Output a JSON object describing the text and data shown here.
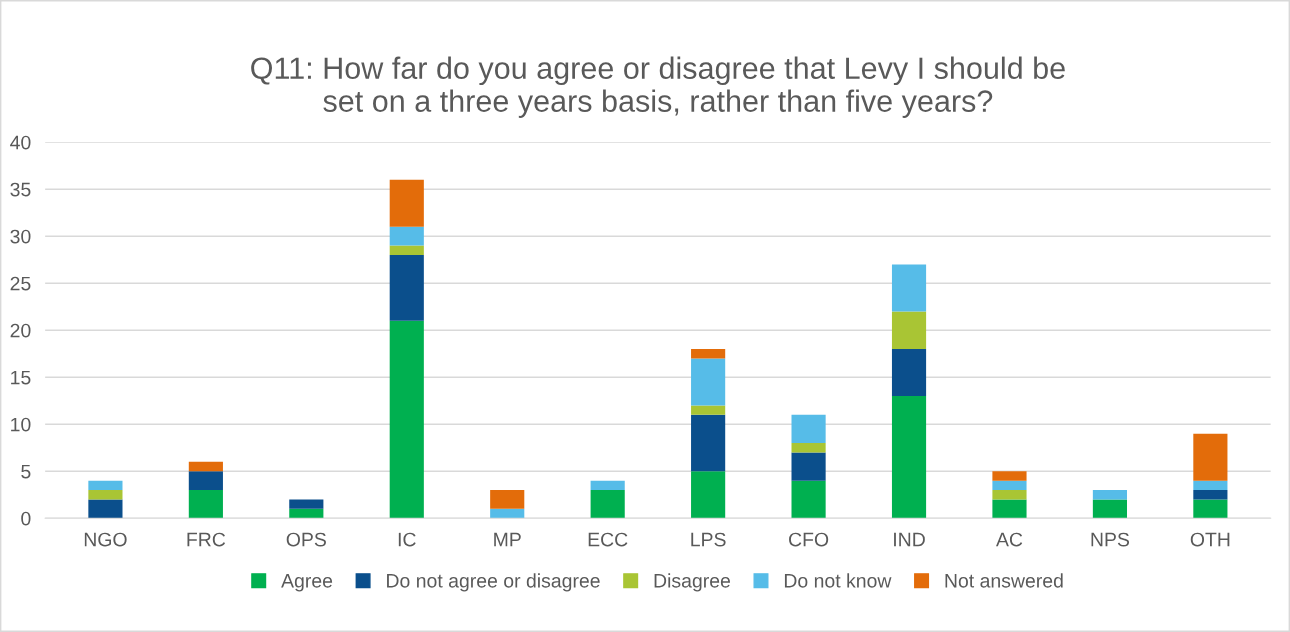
{
  "chart_data": {
    "type": "bar",
    "stacked": true,
    "title": "Q11: How far do you agree or disagree that Levy I should be\nset on a three years basis, rather than five years?",
    "categories": [
      "NGO",
      "FRC",
      "OPS",
      "IC",
      "MP",
      "ECC",
      "LPS",
      "CFO",
      "IND",
      "AC",
      "NPS",
      "OTH"
    ],
    "series": [
      {
        "name": "Agree",
        "color": "#00b050",
        "values": [
          0,
          3,
          1,
          21,
          0,
          3,
          5,
          4,
          13,
          2,
          2,
          2
        ]
      },
      {
        "name": "Do not agree or disagree",
        "color": "#0b4f8c",
        "values": [
          2,
          2,
          1,
          7,
          0,
          0,
          6,
          3,
          5,
          0,
          0,
          1
        ]
      },
      {
        "name": "Disagree",
        "color": "#a9c534",
        "values": [
          1,
          0,
          0,
          1,
          0,
          0,
          1,
          1,
          4,
          1,
          0,
          0
        ]
      },
      {
        "name": "Do not know",
        "color": "#56bce8",
        "values": [
          1,
          0,
          0,
          2,
          1,
          1,
          5,
          3,
          5,
          1,
          1,
          1
        ]
      },
      {
        "name": "Not answered",
        "color": "#e36c0a",
        "values": [
          0,
          1,
          0,
          5,
          2,
          0,
          1,
          0,
          0,
          1,
          0,
          5
        ]
      }
    ],
    "ylim": [
      0,
      40
    ],
    "yticks": [
      0,
      5,
      10,
      15,
      20,
      25,
      30,
      35,
      40
    ],
    "grid": "y",
    "legend": "bottom"
  }
}
